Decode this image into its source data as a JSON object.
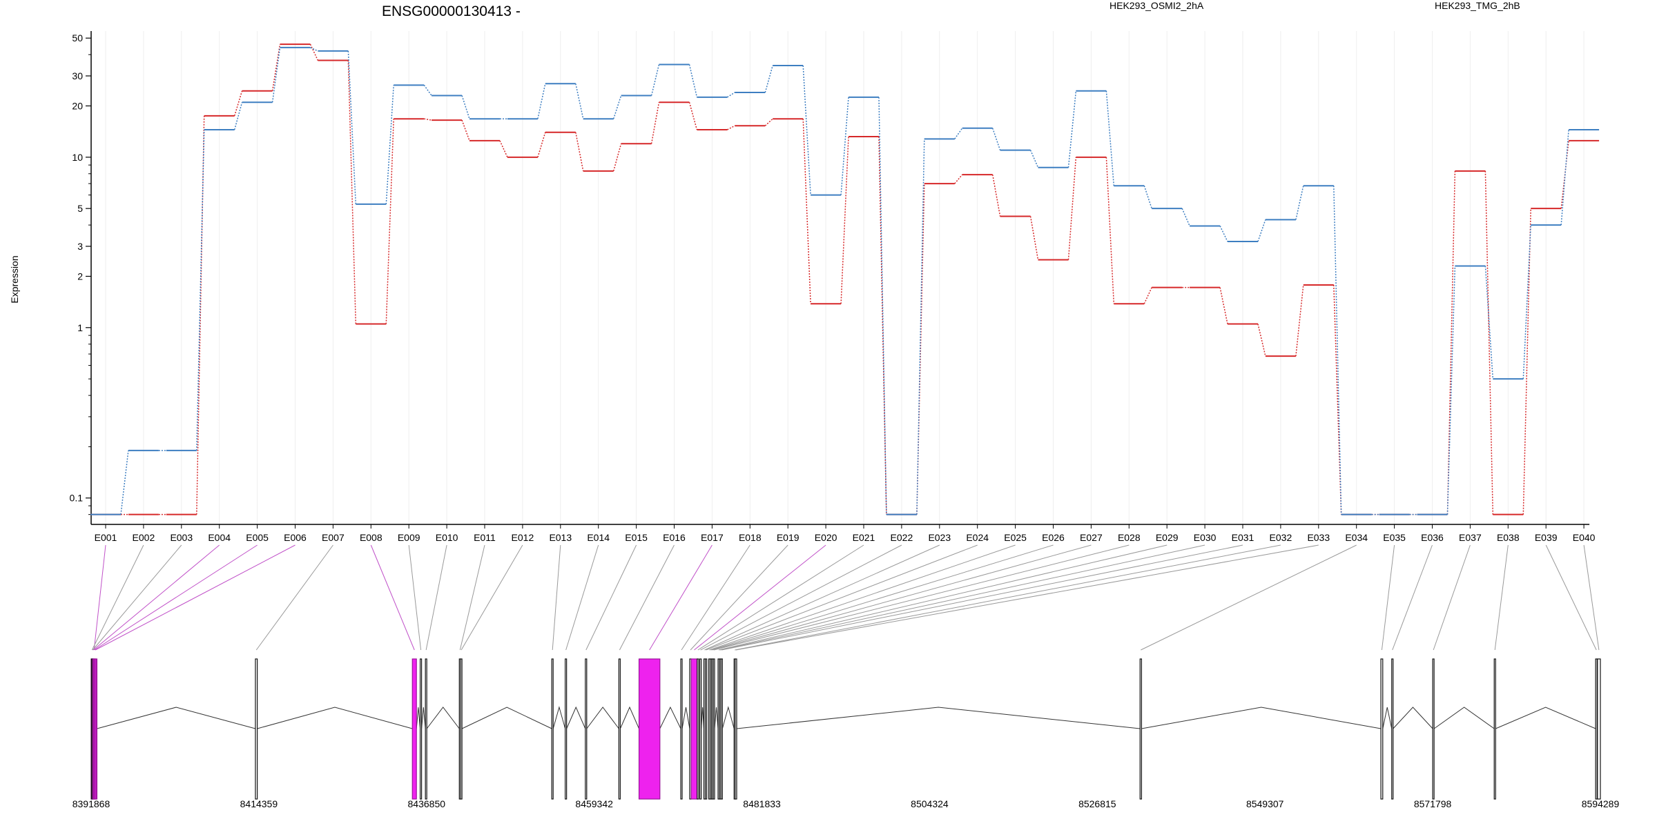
{
  "chart_data": {
    "type": "line",
    "title": "ENSG00000130413 -",
    "xlabel": "",
    "ylabel": "Expression",
    "y_scale": "log",
    "ylim": [
      0.07,
      55
    ],
    "yticks": [
      0.1,
      1,
      2,
      3,
      5,
      10,
      20,
      30,
      50
    ],
    "ytick_labels": [
      "0.1",
      "1",
      "2",
      "3",
      "5",
      "10",
      "20",
      "30",
      "50"
    ],
    "grid": "vertical, light",
    "legend_position": "top",
    "categories": [
      "E001",
      "E002",
      "E003",
      "E004",
      "E005",
      "E006",
      "E007",
      "E008",
      "E009",
      "E010",
      "E011",
      "E012",
      "E013",
      "E014",
      "E015",
      "E016",
      "E017",
      "E018",
      "E019",
      "E020",
      "E021",
      "E022",
      "E023",
      "E024",
      "E025",
      "E026",
      "E027",
      "E028",
      "E029",
      "E030",
      "E031",
      "E032",
      "E033",
      "E034",
      "E035",
      "E036",
      "E037",
      "E038",
      "E039",
      "E040"
    ],
    "series": [
      {
        "name": "HEK293_OSMI2_2hA",
        "color": "#d62728",
        "values": [
          0.08,
          0.08,
          0.08,
          17.5,
          24.5,
          46,
          37,
          1.05,
          16.8,
          16.5,
          12.5,
          10,
          14,
          8.3,
          12,
          21,
          14.5,
          15.3,
          16.8,
          1.38,
          13.2,
          0.08,
          7,
          7.9,
          4.5,
          2.5,
          10,
          1.38,
          1.72,
          1.72,
          1.05,
          0.68,
          1.78,
          0.08,
          0.08,
          0.08,
          8.3,
          0.08,
          5,
          12.5
        ]
      },
      {
        "name": "HEK293_TMG_2hB",
        "color": "#3d7ec1",
        "values": [
          0.08,
          0.19,
          0.19,
          14.5,
          21,
          44,
          42,
          5.3,
          26.5,
          23,
          16.8,
          16.8,
          27,
          16.8,
          23,
          35,
          22.5,
          24,
          34.5,
          6,
          22.5,
          0.08,
          12.8,
          14.8,
          11,
          8.7,
          24.5,
          6.8,
          5,
          3.95,
          3.2,
          4.3,
          6.8,
          0.08,
          0.08,
          0.08,
          2.3,
          0.5,
          4,
          14.5
        ]
      }
    ],
    "genomic_axis": {
      "tick_labels": [
        "8391868",
        "8414359",
        "8436850",
        "8459342",
        "8481833",
        "8504324",
        "8526815",
        "8549307",
        "8571798",
        "8594289"
      ],
      "range": [
        8391868,
        8594289
      ]
    },
    "exons": [
      {
        "id": "E001",
        "start": 8391868,
        "end": 8392650,
        "highlight": true
      },
      {
        "id": "E002",
        "start": 8391900,
        "end": 8391980,
        "highlight": false
      },
      {
        "id": "E003",
        "start": 8391990,
        "end": 8392070,
        "highlight": false
      },
      {
        "id": "E004",
        "start": 8392080,
        "end": 8392200,
        "highlight": true
      },
      {
        "id": "E005",
        "start": 8392210,
        "end": 8392330,
        "highlight": true
      },
      {
        "id": "E006",
        "start": 8392340,
        "end": 8392480,
        "highlight": true
      },
      {
        "id": "E007",
        "start": 8413900,
        "end": 8414150,
        "highlight": false
      },
      {
        "id": "E008",
        "start": 8434950,
        "end": 8435500,
        "highlight": true
      },
      {
        "id": "E009",
        "start": 8436000,
        "end": 8436150,
        "highlight": false
      },
      {
        "id": "E010",
        "start": 8436700,
        "end": 8436850,
        "highlight": false
      },
      {
        "id": "E011",
        "start": 8441250,
        "end": 8441400,
        "highlight": false
      },
      {
        "id": "E012",
        "start": 8441420,
        "end": 8441560,
        "highlight": false
      },
      {
        "id": "E013",
        "start": 8453650,
        "end": 8453800,
        "highlight": false
      },
      {
        "id": "E014",
        "start": 8455450,
        "end": 8455600,
        "highlight": false
      },
      {
        "id": "E015",
        "start": 8458150,
        "end": 8458300,
        "highlight": false
      },
      {
        "id": "E016",
        "start": 8462650,
        "end": 8462800,
        "highlight": false
      },
      {
        "id": "E017",
        "start": 8465350,
        "end": 8468150,
        "highlight": true
      },
      {
        "id": "E018",
        "start": 8470950,
        "end": 8471100,
        "highlight": false
      },
      {
        "id": "E019",
        "start": 8472150,
        "end": 8472350,
        "highlight": false
      },
      {
        "id": "E020",
        "start": 8472350,
        "end": 8473150,
        "highlight": true
      },
      {
        "id": "E021",
        "start": 8473150,
        "end": 8473350,
        "highlight": false
      },
      {
        "id": "E022",
        "start": 8473500,
        "end": 8473700,
        "highlight": false
      },
      {
        "id": "E023",
        "start": 8474050,
        "end": 8474200,
        "highlight": false
      },
      {
        "id": "E024",
        "start": 8474250,
        "end": 8474400,
        "highlight": false
      },
      {
        "id": "E025",
        "start": 8474700,
        "end": 8474850,
        "highlight": false
      },
      {
        "id": "E026",
        "start": 8474900,
        "end": 8475050,
        "highlight": false
      },
      {
        "id": "E027",
        "start": 8475100,
        "end": 8475250,
        "highlight": false
      },
      {
        "id": "E028",
        "start": 8475300,
        "end": 8475450,
        "highlight": false
      },
      {
        "id": "E029",
        "start": 8475950,
        "end": 8476100,
        "highlight": false
      },
      {
        "id": "E030",
        "start": 8476150,
        "end": 8476300,
        "highlight": false
      },
      {
        "id": "E031",
        "start": 8476350,
        "end": 8476500,
        "highlight": false
      },
      {
        "id": "E032",
        "start": 8478100,
        "end": 8478250,
        "highlight": false
      },
      {
        "id": "E033",
        "start": 8478250,
        "end": 8478450,
        "highlight": false
      },
      {
        "id": "E034",
        "start": 8532550,
        "end": 8532750,
        "highlight": false
      },
      {
        "id": "E035",
        "start": 8564850,
        "end": 8565100,
        "highlight": false
      },
      {
        "id": "E036",
        "start": 8566300,
        "end": 8566450,
        "highlight": false
      },
      {
        "id": "E037",
        "start": 8571800,
        "end": 8571950,
        "highlight": false
      },
      {
        "id": "E038",
        "start": 8580050,
        "end": 8580200,
        "highlight": false
      },
      {
        "id": "E039",
        "start": 8593650,
        "end": 8593850,
        "highlight": false
      },
      {
        "id": "E040",
        "start": 8593900,
        "end": 8594289,
        "highlight": false
      }
    ]
  }
}
